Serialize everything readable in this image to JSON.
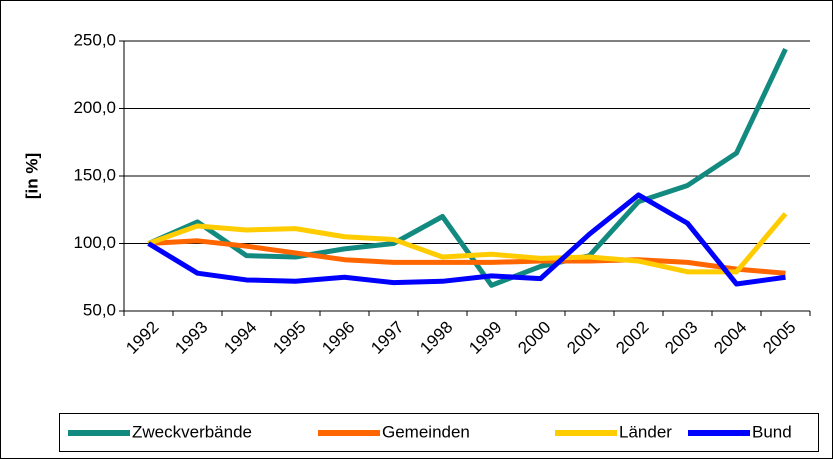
{
  "chart_data": {
    "type": "line",
    "y_label": "[in %]",
    "categories": [
      "1992",
      "1993",
      "1994",
      "1995",
      "1996",
      "1997",
      "1998",
      "1999",
      "2000",
      "2001",
      "2002",
      "2003",
      "2004",
      "2005"
    ],
    "series": [
      {
        "name": "Zweckverbände",
        "color": "#138a80",
        "values": [
          100,
          116,
          91,
          90,
          96,
          100,
          120,
          69,
          83,
          91,
          131,
          143,
          167,
          244
        ]
      },
      {
        "name": "Gemeinden",
        "color": "#ff6600",
        "values": [
          100,
          102,
          98,
          93,
          88,
          86,
          86,
          86,
          87,
          87,
          88,
          86,
          81,
          78
        ]
      },
      {
        "name": "Länder",
        "color": "#ffcc00",
        "values": [
          100,
          113,
          110,
          111,
          105,
          103,
          90,
          92,
          89,
          90,
          87,
          79,
          79,
          122
        ]
      },
      {
        "name": "Bund",
        "color": "#0000ff",
        "values": [
          100,
          78,
          73,
          72,
          75,
          71,
          72,
          76,
          74,
          107,
          136,
          115,
          70,
          75
        ]
      }
    ],
    "ylim": [
      50,
      250
    ],
    "yticks": [
      {
        "value": 50,
        "label": "50,0"
      },
      {
        "value": 100,
        "label": "100,0"
      },
      {
        "value": 150,
        "label": "150,0"
      },
      {
        "value": 200,
        "label": "200,0"
      },
      {
        "value": 250,
        "label": "250,0"
      }
    ],
    "grid": true,
    "legend": "bottom"
  }
}
